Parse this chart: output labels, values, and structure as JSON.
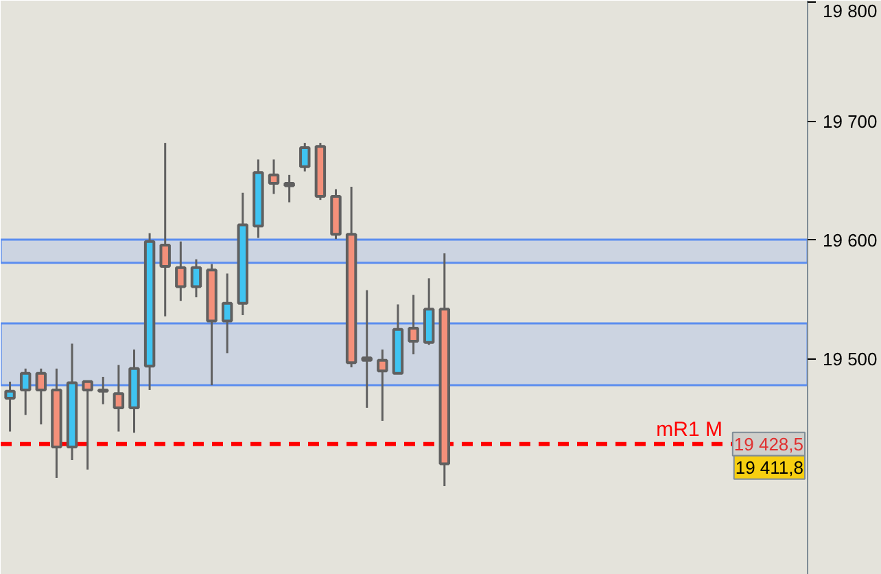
{
  "chart_data": {
    "type": "candlestick",
    "categories": [
      null,
      null,
      null,
      null,
      null,
      null,
      null,
      null,
      null,
      null,
      null,
      null,
      null,
      null,
      null,
      null,
      null,
      null,
      null,
      null,
      null,
      null,
      null,
      null,
      null,
      null,
      null,
      null,
      null,
      null,
      null,
      null,
      null,
      null,
      null,
      null,
      null,
      null,
      null,
      null,
      null,
      null,
      null,
      null,
      null,
      null,
      null,
      null,
      null,
      null,
      null,
      null
    ],
    "ohlc": [
      [
        19467,
        19481,
        19439,
        19473
      ],
      [
        19474,
        19492,
        19453,
        19488
      ],
      [
        19488,
        19492,
        19445,
        19474
      ],
      [
        19474,
        19492,
        19400,
        19426
      ],
      [
        19426,
        19513,
        19415,
        19480
      ],
      [
        19481,
        19481,
        19407,
        19474
      ],
      [
        19474,
        19485,
        19462,
        19473
      ],
      [
        19471,
        19495,
        19439,
        19459
      ],
      [
        19459,
        19508,
        19438,
        19492
      ],
      [
        19494,
        19606,
        19474,
        19599
      ],
      [
        19596,
        19682,
        19536,
        19578
      ],
      [
        19577,
        19599,
        19549,
        19561
      ],
      [
        19561,
        19584,
        19552,
        19577
      ],
      [
        19575,
        19580,
        19478,
        19532
      ],
      [
        19532,
        19572,
        19505,
        19547
      ],
      [
        19547,
        19640,
        19537,
        19613
      ],
      [
        19612,
        19668,
        19602,
        19657
      ],
      [
        19655,
        19668,
        19639,
        19648
      ],
      [
        19646,
        19655,
        19632,
        19648
      ],
      [
        19662,
        19682,
        19658,
        19678
      ],
      [
        19679,
        19682,
        19634,
        19637
      ],
      [
        19637,
        19643,
        19601,
        19605
      ],
      [
        19605,
        19645,
        19493,
        19497
      ],
      [
        19499,
        19558,
        19459,
        19501
      ],
      [
        19499,
        19508,
        19448,
        19490
      ],
      [
        19488,
        19546,
        19488,
        19525
      ],
      [
        19526,
        19554,
        19504,
        19515
      ],
      [
        19514,
        19568,
        19512,
        19542
      ],
      [
        19542,
        19589,
        19393,
        19411.8
      ],
      null,
      null,
      null,
      null,
      null,
      null,
      null,
      null,
      null,
      null,
      null,
      null,
      null,
      null,
      null,
      null,
      null,
      null,
      null,
      null,
      null,
      null,
      null
    ],
    "colors": [
      "#3fc4f2",
      "#3fc4f2",
      "#f4907a",
      "#f4907a",
      "#3fc4f2",
      "#f4907a",
      "#3fc4f2",
      "#f4907a",
      "#3fc4f2",
      "#3fc4f2",
      "#f4907a",
      "#f4907a",
      "#3fc4f2",
      "#f4907a",
      "#3fc4f2",
      "#3fc4f2",
      "#3fc4f2",
      "#f4907a",
      "#3fc4f2",
      "#3fc4f2",
      "#f4907a",
      "#f4907a",
      "#f4907a",
      "#3fc4f2",
      "#f4907a",
      "#3fc4f2",
      "#f4907a",
      "#3fc4f2",
      "#f4907a",
      null,
      null,
      null,
      null,
      null,
      null,
      null,
      null,
      null,
      null,
      null,
      null,
      null,
      null,
      null,
      null,
      null,
      null,
      null,
      null,
      null,
      null,
      null
    ],
    "ylim": [
      19318.5,
      19801.7
    ],
    "yticks": [
      {
        "value": 19500,
        "label": "19 500"
      },
      {
        "value": 19600,
        "label": "19 600"
      },
      {
        "value": 19700,
        "label": "19 700"
      },
      {
        "value": 19800,
        "label": "19 800"
      }
    ],
    "tick_labels": "y",
    "grid": false,
    "ref_lines": [
      {
        "axis": "y",
        "value": 19428.5,
        "label": "mR1 M",
        "color": "#ff0000",
        "line_style": "dashed"
      }
    ],
    "bands": [
      {
        "axis": "y",
        "from": 19581,
        "to": 19600.6,
        "color": "#c5d0e2"
      },
      {
        "axis": "y",
        "from": 19478,
        "to": 19530,
        "color": "#c5d0e2"
      }
    ],
    "annotations": [
      {
        "text": "19 428,5",
        "y": 19428.5
      },
      "19 411,8"
    ]
  }
}
